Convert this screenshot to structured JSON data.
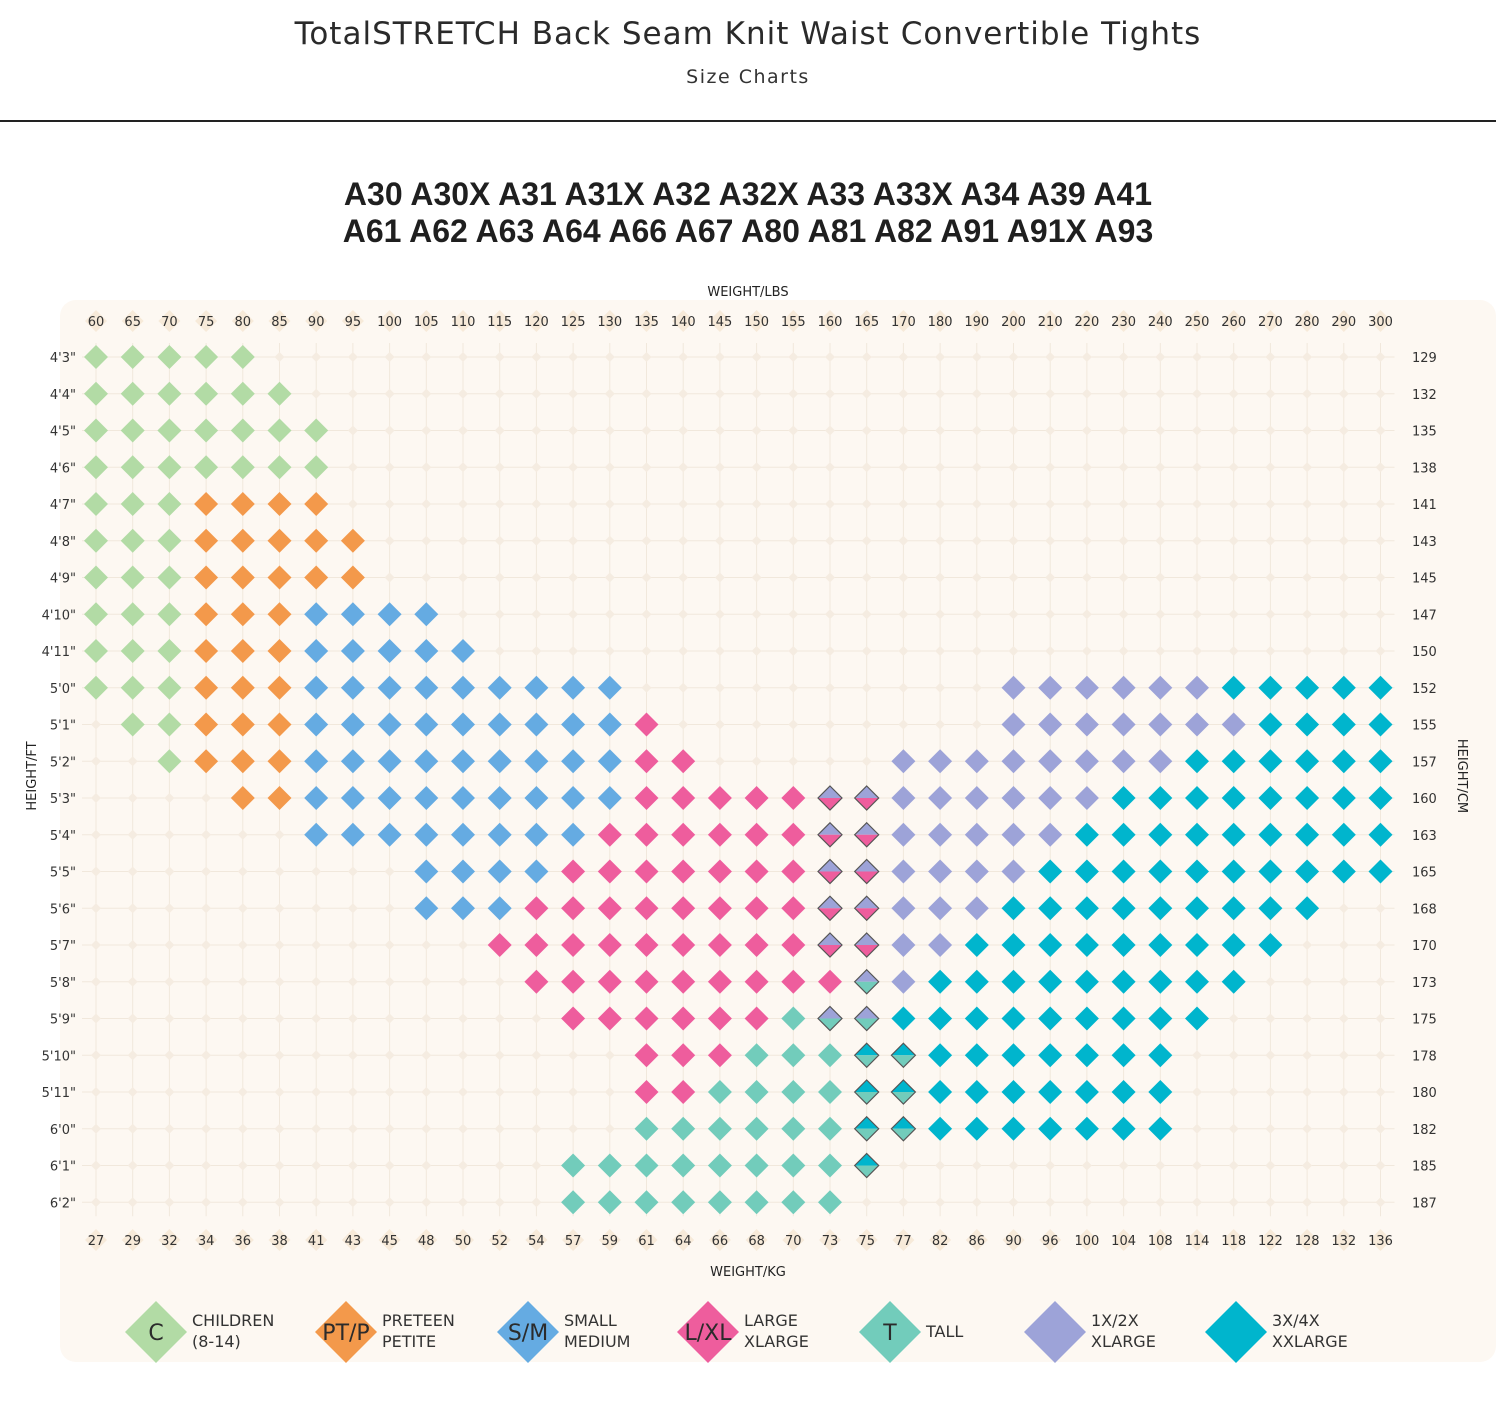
{
  "header": {
    "title": "TotalSTRETCH Back Seam Knit Waist Convertible Tights",
    "subtitle": "Size Charts"
  },
  "styles": {
    "line1": "A30 A30X A31 A31X A32 A32X A33 A33X A34 A39 A41",
    "line2": "A61 A62 A63 A64 A66 A67 A80 A81 A82 A91 A91X A93"
  },
  "chart_data": {
    "type": "heatmap",
    "x_top_label": "WEIGHT/LBS",
    "x_bottom_label": "WEIGHT/KG",
    "y_left_label": "HEIGHT/FT",
    "y_right_label": "HEIGHT/CM",
    "lbs": [
      "60",
      "65",
      "70",
      "75",
      "80",
      "85",
      "90",
      "95",
      "100",
      "105",
      "110",
      "115",
      "120",
      "125",
      "130",
      "135",
      "140",
      "145",
      "150",
      "155",
      "160",
      "165",
      "170",
      "180",
      "190",
      "200",
      "210",
      "220",
      "230",
      "240",
      "250",
      "260",
      "270",
      "280",
      "290",
      "300"
    ],
    "kg": [
      "27",
      "29",
      "32",
      "34",
      "36",
      "38",
      "41",
      "43",
      "45",
      "48",
      "50",
      "52",
      "54",
      "57",
      "59",
      "61",
      "64",
      "66",
      "68",
      "70",
      "73",
      "75",
      "77",
      "82",
      "86",
      "90",
      "96",
      "100",
      "104",
      "108",
      "114",
      "118",
      "122",
      "128",
      "132",
      "136"
    ],
    "heights_ft": [
      "4'3\"",
      "4'4\"",
      "4'5\"",
      "4'6\"",
      "4'7\"",
      "4'8\"",
      "4'9\"",
      "4'10\"",
      "4'11\"",
      "5'0\"",
      "5'1\"",
      "5'2\"",
      "5'3\"",
      "5'4\"",
      "5'5\"",
      "5'6\"",
      "5'7\"",
      "5'8\"",
      "5'9\"",
      "5'10\"",
      "5'11\"",
      "6'0\"",
      "6'1\"",
      "6'2\""
    ],
    "heights_cm": [
      "129",
      "132",
      "135",
      "138",
      "141",
      "143",
      "145",
      "147",
      "150",
      "152",
      "155",
      "157",
      "160",
      "163",
      "165",
      "168",
      "170",
      "173",
      "175",
      "178",
      "180",
      "182",
      "185",
      "187"
    ],
    "grid": [
      "CCCCC...............................",
      "CCCCCC..............................",
      "CCCCCCC.............................",
      "CCCCCCC.............................",
      "CCCPPPP.............................",
      "CCCPPPPP............................",
      "CCCPPPPP............................",
      "CCCPPPSSSS..........................",
      "CCCPPPSSSSS.........................",
      "CCCPPPSSSSSSSSS..........XXXXXXZZZZZ.",
      ".CCPPPSSSSSSSSSL.........XXXXXXXZZZZZ.",
      "..CPPPSSSSSSSSSLL.....XXXXXXXXZZZZZZ.",
      "....PPSSSSSSSSSLLLLLBBXXXXXXZZZZZZZZ.",
      "......SSSSSSSSLLLLLLBBXXXXXZZZZZZZZZ.",
      ".........SSSSLLLLLLLBBXXXXZZZZZZZZZZ.",
      ".........SSSLLLLLLLLBBXXXZZZZZZZZZ...",
      "...........LLLLLLLLLBBXXZZZZZZZZZ....",
      "............LLLLLLLLLMXZZZZZZZZZ.....",
      ".............LLLLLLTMMZZZZZZZZZ......",
      "...............LLLTTTUUZZZZZZZ.......",
      "...............LLTTTTUUZZZZZZZ.......",
      "...............TTTTTTUUZZZZZZZ.......",
      ".............TTTTTTTTU..............",
      ".............TTTTTTTT..............."
    ],
    "legend": [
      {
        "code": "C",
        "letter": "C",
        "line1": "CHILDREN",
        "line2": "(8-14)",
        "color": "#b2dba5"
      },
      {
        "code": "P",
        "letter": "PT/P",
        "line1": "PRETEEN",
        "line2": "PETITE",
        "color": "#f3994b"
      },
      {
        "code": "S",
        "letter": "S/M",
        "line1": "SMALL",
        "line2": "MEDIUM",
        "color": "#65abe2"
      },
      {
        "code": "L",
        "letter": "L/XL",
        "line1": "LARGE",
        "line2": "XLARGE",
        "color": "#ee5d9d"
      },
      {
        "code": "T",
        "letter": "T",
        "line1": "TALL",
        "line2": "",
        "color": "#72ccbb"
      },
      {
        "code": "X",
        "letter": "",
        "line1": "1X/2X",
        "line2": "XLARGE",
        "color": "#9da3d8"
      },
      {
        "code": "Z",
        "letter": "",
        "line1": "3X/4X",
        "line2": "XXLARGE",
        "color": "#00b5cd"
      }
    ],
    "split_cells": {
      "B": [
        "#9da3d8",
        "#ee5d9d"
      ],
      "M": [
        "#9da3d8",
        "#72ccbb"
      ],
      "U": [
        "#00b5cd",
        "#72ccbb"
      ]
    }
  }
}
